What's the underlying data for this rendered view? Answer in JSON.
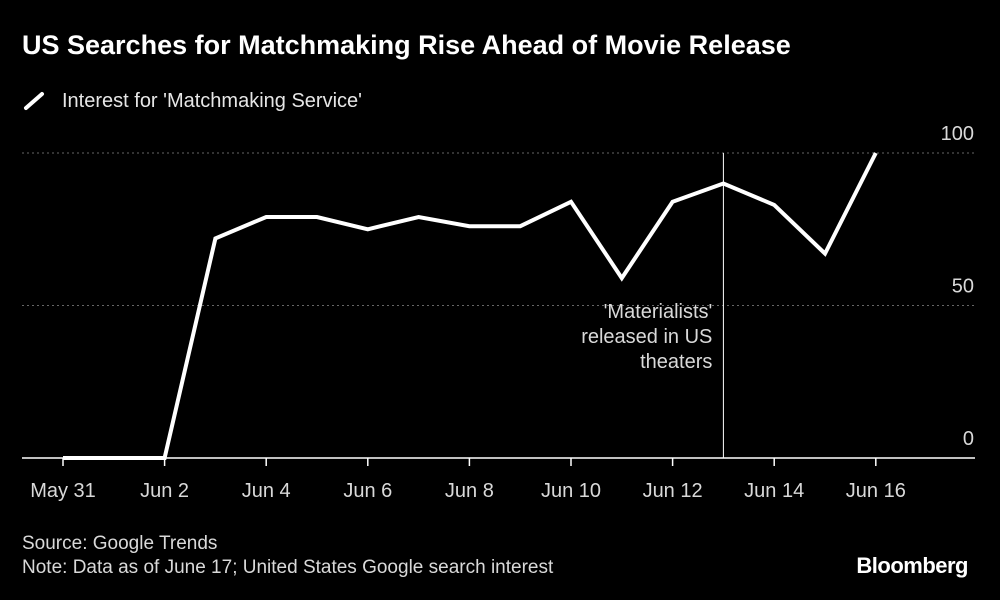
{
  "title": "US Searches for Matchmaking Rise Ahead of Movie Release",
  "source": "Source: Google Trends",
  "note": "Note: Data as of June 17; United States Google search interest",
  "brand": "Bloomberg",
  "colors": {
    "background": "#000000",
    "line": "#ffffff",
    "grid": "#666666",
    "text": "#d9d9d9"
  },
  "chart_data": {
    "type": "line",
    "title": "US Searches for Matchmaking Rise Ahead of Movie Release",
    "xlabel": "",
    "ylabel": "",
    "x": [
      "May 31",
      "Jun 1",
      "Jun 2",
      "Jun 3",
      "Jun 4",
      "Jun 5",
      "Jun 6",
      "Jun 7",
      "Jun 8",
      "Jun 9",
      "Jun 10",
      "Jun 11",
      "Jun 12",
      "Jun 13",
      "Jun 14",
      "Jun 15",
      "Jun 16"
    ],
    "x_tick_labels": [
      "May 31",
      "Jun 2",
      "Jun 4",
      "Jun 6",
      "Jun 8",
      "Jun 10",
      "Jun 12",
      "Jun 14",
      "Jun 16"
    ],
    "y_ticks": [
      0,
      50,
      100
    ],
    "ylim": [
      0,
      100
    ],
    "grid": "horizontal dotted",
    "legend_placement": "top-left",
    "series": [
      {
        "name": "Interest for 'Matchmaking Service'",
        "values": [
          0,
          0,
          0,
          72,
          79,
          79,
          75,
          79,
          76,
          76,
          84,
          59,
          84,
          90,
          83,
          67,
          100
        ]
      }
    ],
    "annotations": [
      {
        "x": "Jun 13",
        "lines": [
          "'Materialists'",
          "released in US",
          "theaters"
        ]
      }
    ]
  }
}
